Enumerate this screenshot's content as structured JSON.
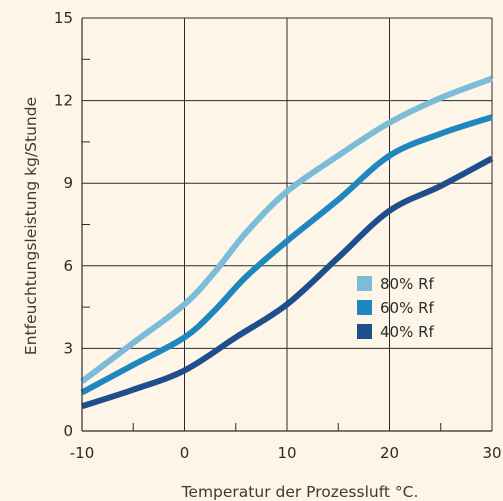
{
  "chart_data": {
    "type": "line",
    "xlabel": "Temperatur der Prozessluft °C.",
    "ylabel": "Entfeuchtungsleistung kg/Stunde",
    "xlim": [
      -10,
      30
    ],
    "ylim": [
      0,
      15
    ],
    "xticks": [
      -10,
      0,
      10,
      20,
      30
    ],
    "yticks": [
      0,
      3,
      6,
      9,
      12,
      15
    ],
    "x_minor_step": 5,
    "y_minor_step": 1.5,
    "grid": true,
    "legend_position": "lower-right",
    "series": [
      {
        "name": "80% Rf",
        "color": "#7cbcd9",
        "x": [
          -10,
          -5,
          0,
          3,
          6,
          10,
          15,
          20,
          25,
          30
        ],
        "y": [
          1.8,
          3.2,
          4.6,
          5.8,
          7.2,
          8.7,
          10.0,
          11.2,
          12.1,
          12.8
        ]
      },
      {
        "name": "60% Rf",
        "color": "#1f87bf",
        "x": [
          -10,
          -5,
          0,
          3,
          6,
          10,
          15,
          20,
          25,
          30
        ],
        "y": [
          1.4,
          2.4,
          3.4,
          4.4,
          5.6,
          6.9,
          8.4,
          10.0,
          10.8,
          11.4
        ]
      },
      {
        "name": "40% Rf",
        "color": "#1f4e8c",
        "x": [
          -10,
          -5,
          0,
          5,
          10,
          15,
          20,
          25,
          30
        ],
        "y": [
          0.9,
          1.5,
          2.2,
          3.4,
          4.6,
          6.3,
          8.0,
          8.9,
          9.9
        ]
      }
    ]
  }
}
